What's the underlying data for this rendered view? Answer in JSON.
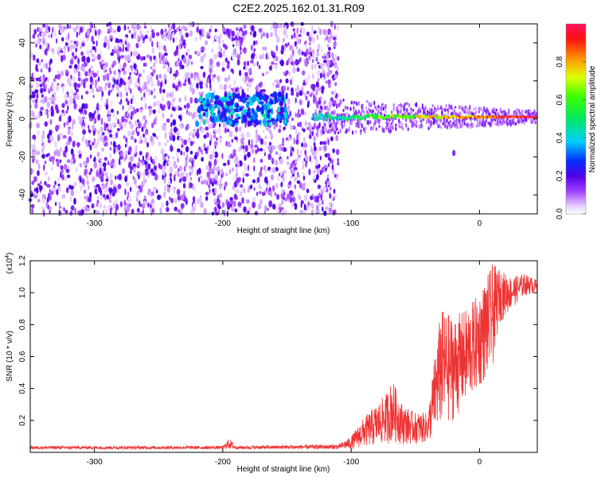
{
  "title": "C2E2.2025.162.01.31.R09",
  "chart_data": [
    {
      "type": "heatmap",
      "xlabel": "Height of straight line (km)",
      "ylabel": "Frequency (Hz)",
      "xlim": [
        -350,
        45
      ],
      "ylim": [
        -50,
        50
      ],
      "xticks": [
        -300,
        -200,
        -100,
        0
      ],
      "yticks": [
        -40,
        -20,
        0,
        20,
        40
      ],
      "colorbar": {
        "label": "Normalized spectral amplitude",
        "range": [
          0.0,
          1.0
        ],
        "ticks": [
          "0.0",
          "0.2",
          "0.4",
          "0.6",
          "0.8"
        ],
        "colormap": "rainbow (white-violet-blue-cyan-green-yellow-orange-red)"
      },
      "description_values": {
        "noise_region_x": [
          -350,
          -110
        ],
        "noise_amplitude": [
          0.0,
          0.2
        ],
        "blob_x": [
          -220,
          -150
        ],
        "blob_amplitude": [
          0.2,
          0.45
        ],
        "signal_band_center_hz": 0,
        "signal_band_x": [
          -130,
          45
        ],
        "signal_amplitude_at_start": 0.4,
        "signal_amplitude_at_end": 1.0,
        "outlier": {
          "x": -20,
          "y": -18
        }
      }
    },
    {
      "type": "line",
      "xlabel": "Height of straight line (km)",
      "ylabel": "SNR (10 * v/v)",
      "multiplier": "(x10",
      "multiplier_exp": "4",
      "multiplier_close": ")",
      "xlim": [
        -350,
        45
      ],
      "ylim": [
        0,
        1.2
      ],
      "xticks": [
        -300,
        -200,
        -100,
        0
      ],
      "yticks": [
        "0.2",
        "0.4",
        "0.6",
        "0.8",
        "1.0",
        "1.2"
      ],
      "color": "#ee3333",
      "series": [
        {
          "envelope": [
            [
              -350,
              0.02,
              0.04
            ],
            [
              -200,
              0.02,
              0.04
            ],
            [
              -195,
              0.02,
              0.09
            ],
            [
              -190,
              0.02,
              0.04
            ],
            [
              -110,
              0.02,
              0.05
            ],
            [
              -100,
              0.02,
              0.1
            ],
            [
              -90,
              0.03,
              0.22
            ],
            [
              -80,
              0.04,
              0.3
            ],
            [
              -72,
              0.05,
              0.38
            ],
            [
              -68,
              0.06,
              0.46
            ],
            [
              -60,
              0.05,
              0.3
            ],
            [
              -50,
              0.05,
              0.25
            ],
            [
              -40,
              0.06,
              0.25
            ],
            [
              -35,
              0.1,
              0.6
            ],
            [
              -30,
              0.15,
              0.9
            ],
            [
              -20,
              0.2,
              0.85
            ],
            [
              -10,
              0.3,
              0.9
            ],
            [
              0,
              0.4,
              1.0
            ],
            [
              10,
              0.5,
              1.18
            ],
            [
              15,
              0.8,
              1.15
            ],
            [
              25,
              0.9,
              1.1
            ],
            [
              35,
              0.98,
              1.12
            ],
            [
              45,
              1.0,
              1.08
            ]
          ]
        }
      ]
    }
  ]
}
